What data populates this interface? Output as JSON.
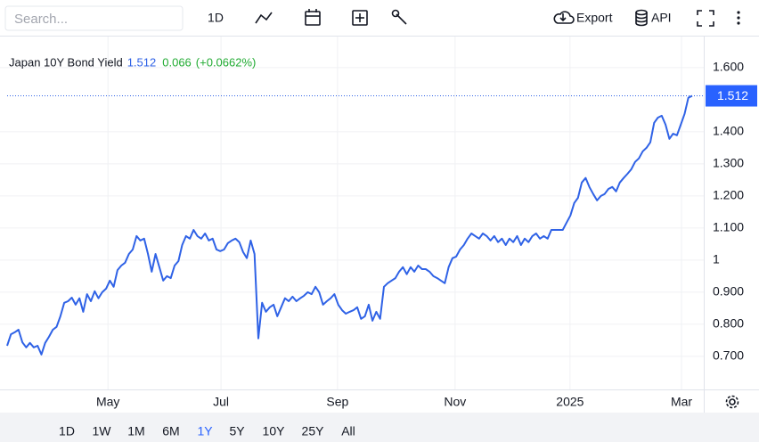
{
  "toolbar": {
    "search_placeholder": "Search...",
    "interval": "1D",
    "export": "Export",
    "api": "API"
  },
  "range_buttons": [
    "1D",
    "1W",
    "1M",
    "6M",
    "1Y",
    "5Y",
    "10Y",
    "25Y",
    "All"
  ],
  "active_range": "1Y",
  "chart_data": {
    "type": "line",
    "title": "Japan 10Y Bond Yield",
    "change": 0.066,
    "change_percent": "(+0.0662%)",
    "change_color": "#22ab33",
    "series": [
      {
        "name": "Japan 10Y Bond Yield",
        "color": "#2f62e6",
        "values": [
          0.733,
          0.769,
          0.775,
          0.783,
          0.744,
          0.728,
          0.742,
          0.728,
          0.733,
          0.706,
          0.742,
          0.761,
          0.783,
          0.792,
          0.825,
          0.867,
          0.872,
          0.883,
          0.861,
          0.881,
          0.839,
          0.894,
          0.872,
          0.903,
          0.881,
          0.9,
          0.911,
          0.936,
          0.917,
          0.969,
          0.983,
          0.992,
          1.019,
          1.033,
          1.075,
          1.061,
          1.067,
          1.019,
          0.964,
          1.019,
          0.978,
          0.936,
          0.95,
          0.944,
          0.983,
          0.997,
          1.047,
          1.075,
          1.067,
          1.094,
          1.075,
          1.067,
          1.083,
          1.061,
          1.067,
          1.033,
          1.028,
          1.033,
          1.053,
          1.061,
          1.067,
          1.056,
          1.025,
          1.006,
          1.061,
          1.019,
          0.756,
          0.867,
          0.839,
          0.853,
          0.861,
          0.825,
          0.853,
          0.881,
          0.872,
          0.886,
          0.872,
          0.881,
          0.889,
          0.9,
          0.894,
          0.917,
          0.9,
          0.861,
          0.872,
          0.881,
          0.894,
          0.861,
          0.844,
          0.833,
          0.839,
          0.844,
          0.853,
          0.817,
          0.825,
          0.861,
          0.811,
          0.839,
          0.817,
          0.917,
          0.928,
          0.936,
          0.944,
          0.964,
          0.978,
          0.956,
          0.978,
          0.964,
          0.983,
          0.972,
          0.972,
          0.964,
          0.95,
          0.944,
          0.936,
          0.928,
          0.978,
          1.006,
          1.011,
          1.033,
          1.047,
          1.067,
          1.083,
          1.075,
          1.067,
          1.083,
          1.075,
          1.061,
          1.075,
          1.056,
          1.067,
          1.047,
          1.067,
          1.056,
          1.075,
          1.047,
          1.067,
          1.056,
          1.075,
          1.083,
          1.067,
          1.075,
          1.067,
          1.094,
          1.094,
          1.094,
          1.094,
          1.117,
          1.139,
          1.178,
          1.194,
          1.242,
          1.256,
          1.228,
          1.206,
          1.186,
          1.2,
          1.206,
          1.222,
          1.228,
          1.214,
          1.242,
          1.256,
          1.269,
          1.283,
          1.306,
          1.317,
          1.339,
          1.35,
          1.367,
          1.428,
          1.444,
          1.45,
          1.422,
          1.378,
          1.394,
          1.389,
          1.422,
          1.456,
          1.506,
          1.512
        ]
      }
    ],
    "ylim": [
      0.597,
      1.694
    ],
    "yticks": [
      {
        "value": 0.7,
        "label": "0.700"
      },
      {
        "value": 0.8,
        "label": "0.800"
      },
      {
        "value": 0.9,
        "label": "0.900"
      },
      1,
      {
        "value": 1.1,
        "label": "1.100"
      },
      {
        "value": 1.2,
        "label": "1.200"
      },
      {
        "value": 1.3,
        "label": "1.300"
      },
      {
        "value": 1.4,
        "label": "1.400"
      },
      {
        "value": 1.6,
        "label": "1.600"
      }
    ],
    "xticks": [
      {
        "value": 26.5,
        "label": "May"
      },
      {
        "value": 56.2,
        "label": "Jul"
      },
      {
        "value": 86.8,
        "label": "Sep"
      },
      {
        "value": 117.7,
        "label": "Nov"
      },
      {
        "value": 147.9,
        "label": "2025"
      },
      {
        "value": 177.2,
        "label": "Mar"
      }
    ],
    "grid": true
  }
}
